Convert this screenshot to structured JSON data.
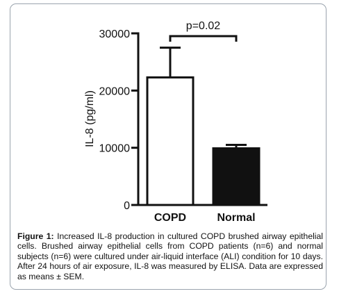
{
  "chart_data": {
    "type": "bar",
    "categories": [
      "COPD",
      "Normal"
    ],
    "values": [
      22300,
      9900
    ],
    "errors": [
      5200,
      600
    ],
    "ylabel": "IL-8 (pg/ml)",
    "ylim": [
      0,
      30000
    ],
    "yticks": [
      0,
      10000,
      20000,
      30000
    ],
    "ytick_labels": [
      "0",
      "10000",
      "20000",
      "30000"
    ],
    "bar_fills": [
      "#ffffff",
      "#111111"
    ],
    "significance": "p=0.02",
    "grid": false,
    "legend": "none"
  },
  "caption": {
    "label": "Figure 1:",
    "text": " Increased IL-8 production in cultured COPD brushed airway epithelial cells. Brushed airway epithelial cells from COPD patients (n=6) and normal subjects (n=6) were cultured under air-liquid interface (ALI) condition for 10 days. After 24 hours of air exposure, IL-8 was measured by ELISA. Data are expressed as means ± SEM."
  }
}
